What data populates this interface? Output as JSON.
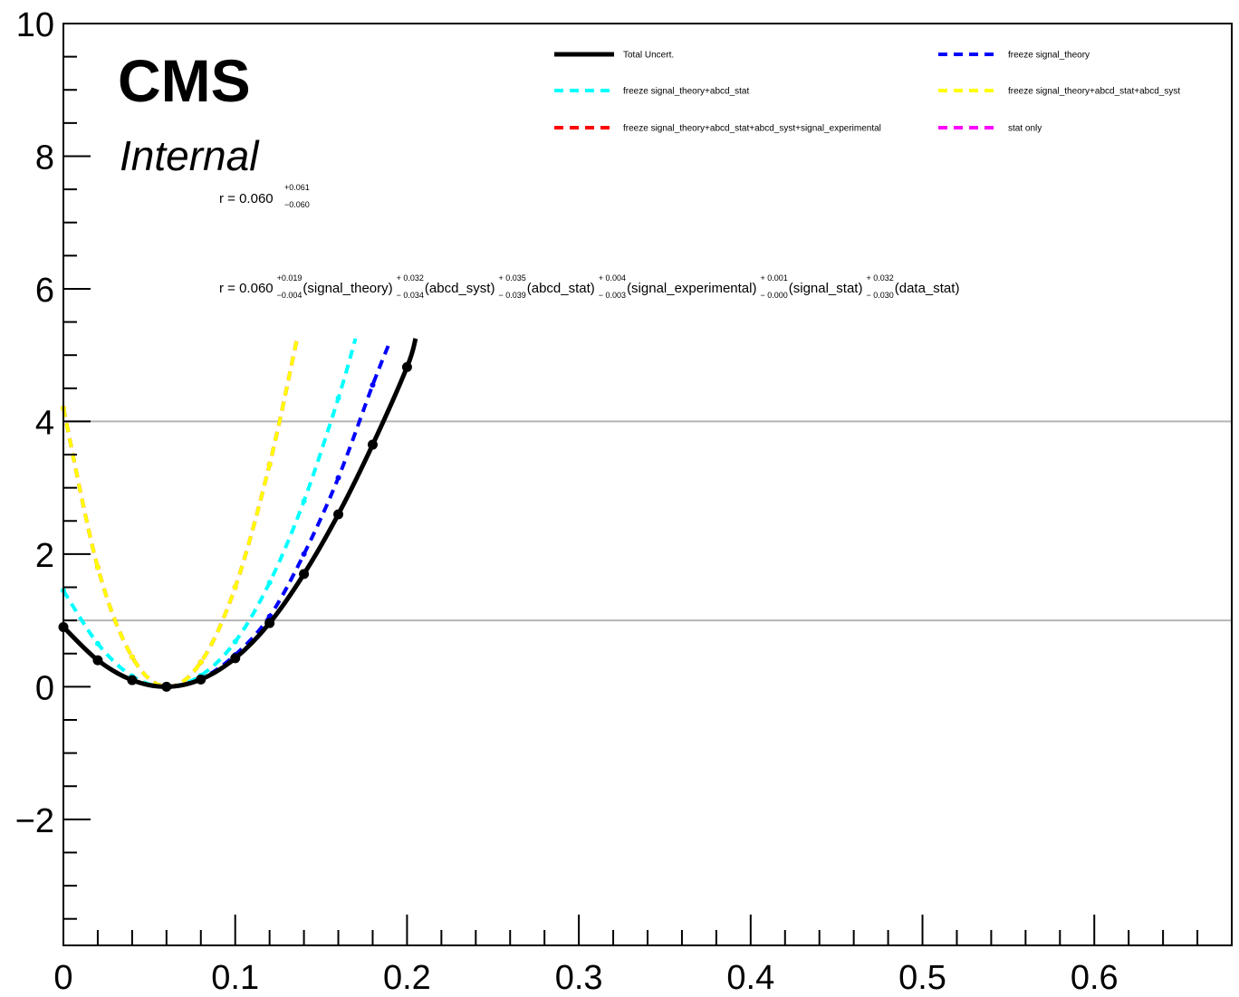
{
  "chart_data": {
    "type": "line",
    "title": "",
    "xlabel": "",
    "ylabel": "",
    "xlim": [
      0,
      0.68
    ],
    "ylim": [
      -3.9,
      10
    ],
    "x_ticks": [
      {
        "value": 0,
        "label": "0"
      },
      {
        "value": 0.1,
        "label": "0.1"
      },
      {
        "value": 0.2,
        "label": "0.2"
      },
      {
        "value": 0.3,
        "label": "0.3"
      },
      {
        "value": 0.4,
        "label": "0.4"
      },
      {
        "value": 0.5,
        "label": "0.5"
      },
      {
        "value": 0.6,
        "label": "0.6"
      }
    ],
    "y_ticks": [
      {
        "value": -2,
        "label": "−2"
      },
      {
        "value": 0,
        "label": "0"
      },
      {
        "value": 2,
        "label": "2"
      },
      {
        "value": 4,
        "label": "4"
      },
      {
        "value": 6,
        "label": "6"
      },
      {
        "value": 8,
        "label": "8"
      },
      {
        "value": 10,
        "label": "10"
      }
    ],
    "reference_lines": [
      1,
      4
    ],
    "legend_placement": "top-right",
    "series": [
      {
        "name": "Total Uncert.",
        "color": "#000000",
        "style": "solid",
        "x": [
          0,
          0.02,
          0.04,
          0.06,
          0.08,
          0.1,
          0.12,
          0.14,
          0.16,
          0.18,
          0.2,
          0.205
        ],
        "y": [
          0.9,
          0.4,
          0.1,
          0.0,
          0.11,
          0.43,
          0.96,
          1.7,
          2.6,
          3.65,
          4.82,
          5.25
        ]
      },
      {
        "name": "freeze signal_theory",
        "color": "#0000ff",
        "style": "dashed",
        "x": [
          0,
          0.02,
          0.04,
          0.06,
          0.08,
          0.1,
          0.12,
          0.14,
          0.16,
          0.18,
          0.19
        ],
        "y": [
          0.9,
          0.4,
          0.1,
          0.0,
          0.12,
          0.48,
          1.06,
          2.0,
          3.15,
          4.55,
          5.2
        ]
      },
      {
        "name": "freeze signal_theory+abcd_stat",
        "color": "#00ffff",
        "style": "dashed",
        "x": [
          0,
          0.02,
          0.04,
          0.06,
          0.08,
          0.1,
          0.12,
          0.14,
          0.16,
          0.17
        ],
        "y": [
          1.45,
          0.65,
          0.16,
          0.0,
          0.17,
          0.68,
          1.57,
          2.8,
          4.35,
          5.25
        ]
      },
      {
        "name": "freeze signal_theory+abcd_stat+abcd_syst",
        "color": "#ffff00",
        "style": "dashed",
        "x": [
          0,
          0.02,
          0.04,
          0.06,
          0.08,
          0.1,
          0.12,
          0.136
        ],
        "y": [
          4.2,
          1.8,
          0.45,
          0.0,
          0.37,
          1.5,
          3.35,
          5.25
        ]
      },
      {
        "name": "freeze signal_theory+abcd_stat+abcd_syst+signal_experimental",
        "color": "#ff0000",
        "style": "dashed",
        "x": [
          0,
          0.02,
          0.04,
          0.06,
          0.08,
          0.1,
          0.12,
          0.136
        ],
        "y": [
          4.2,
          1.8,
          0.45,
          0.0,
          0.37,
          1.5,
          3.35,
          5.25
        ]
      },
      {
        "name": "stat only",
        "color": "#ff00ff",
        "style": "dashed",
        "x": [
          0,
          0.02,
          0.04,
          0.06,
          0.08,
          0.1,
          0.12,
          0.136
        ],
        "y": [
          4.2,
          1.8,
          0.45,
          0.0,
          0.37,
          1.5,
          3.35,
          5.25
        ]
      }
    ],
    "annotations": {
      "cms_label": "CMS",
      "internal_label": "Internal",
      "total": {
        "prefix": "r = 0.060",
        "up": "+0.061",
        "down": "−0.060"
      },
      "breakdown": {
        "prefix": "r = 0.060",
        "terms": [
          {
            "up": "+0.019",
            "down": "−0.004",
            "label": "(signal_theory)"
          },
          {
            "up": "+ 0.032",
            "down": "− 0.034",
            "label": "(abcd_syst)"
          },
          {
            "up": "+ 0.035",
            "down": "− 0.039",
            "label": "(abcd_stat)"
          },
          {
            "up": "+ 0.004",
            "down": "− 0.003",
            "label": "(signal_experimental)"
          },
          {
            "up": "+ 0.001",
            "down": "− 0.000",
            "label": "(signal_stat)"
          },
          {
            "up": "+ 0.032",
            "down": "− 0.030",
            "label": "(data_stat)"
          }
        ]
      }
    }
  }
}
